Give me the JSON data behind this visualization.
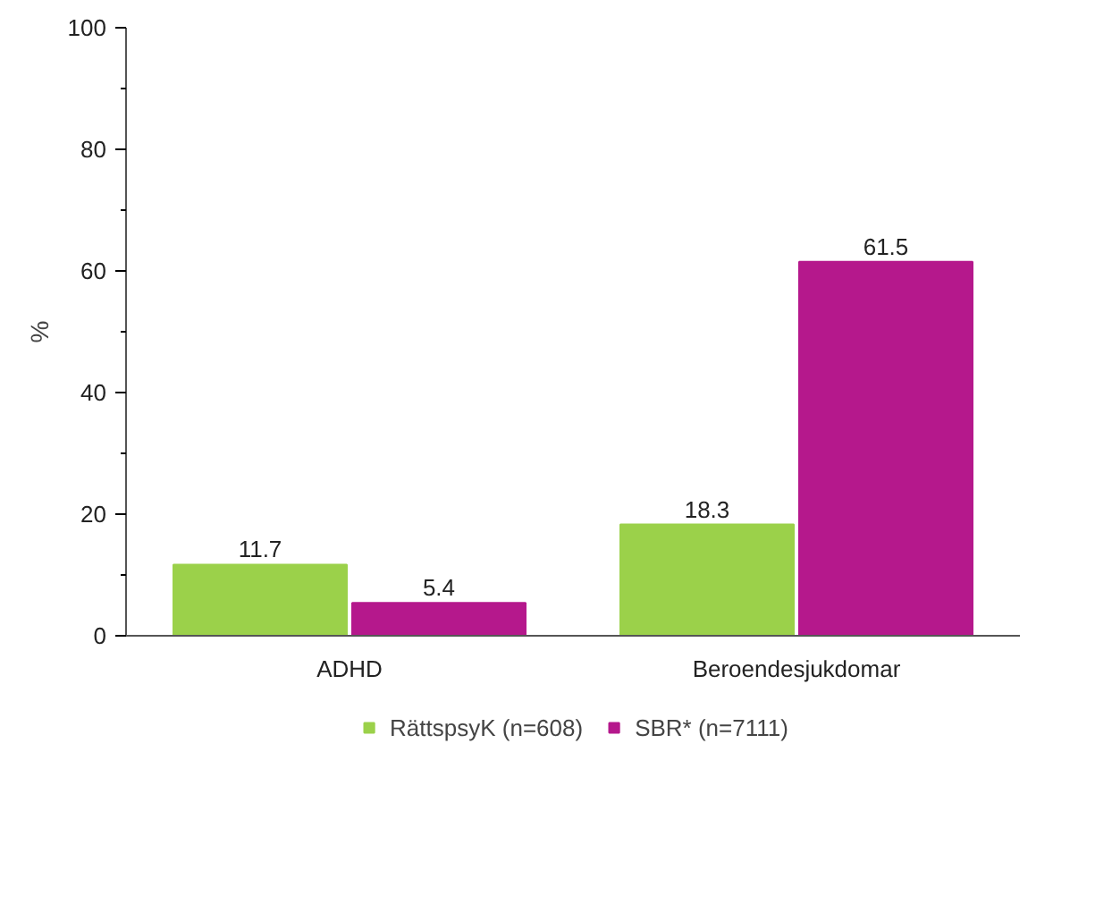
{
  "chart_data": {
    "type": "bar",
    "ylabel": "%",
    "categories": [
      "ADHD",
      "Beroendesjukdomar"
    ],
    "series": [
      {
        "name": "RättspsyK (n=608)",
        "color": "#9bd14a",
        "values": [
          11.7,
          18.3
        ]
      },
      {
        "name": "SBR* (n=7111)",
        "color": "#b5188c",
        "values": [
          5.4,
          61.5
        ]
      }
    ],
    "ylim": [
      0,
      100
    ],
    "yticks": [
      0,
      20,
      40,
      60,
      80,
      100
    ],
    "data_labels": true,
    "grid": false,
    "legend": "bottom"
  }
}
